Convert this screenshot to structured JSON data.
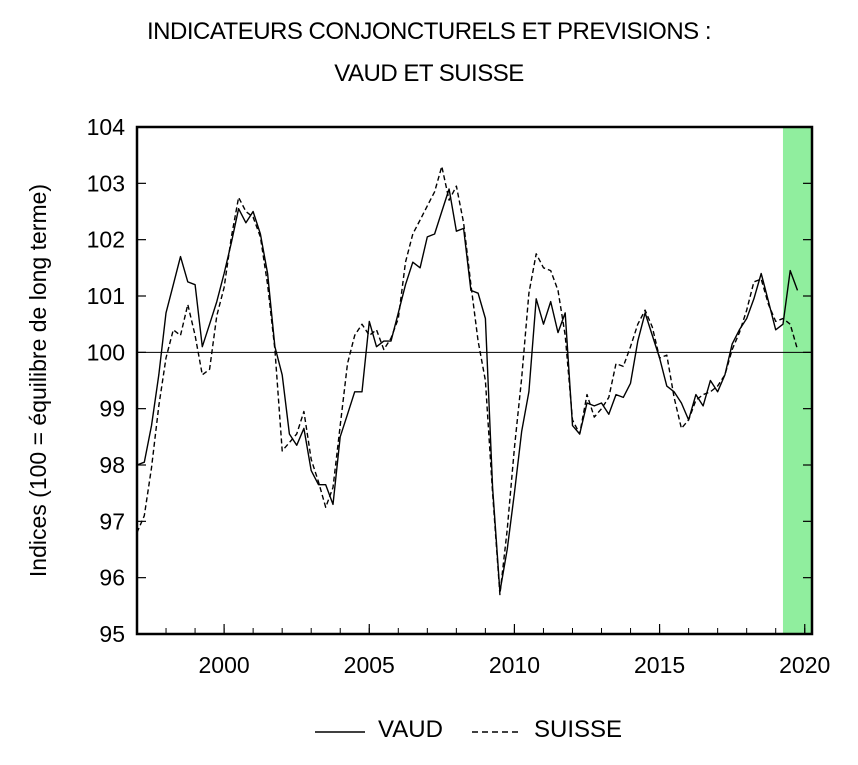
{
  "chart_data": {
    "type": "line",
    "title": "INDICATEURS CONJONCTURELS ET PREVISIONS :",
    "subtitle": "VAUD ET SUISSE",
    "ylabel": "Indices (100 = équilibre de long terme)",
    "xlabel": "",
    "xlim": [
      1997,
      2020.25
    ],
    "ylim": [
      95,
      104
    ],
    "x_ticks": [
      "2000",
      "2005",
      "2010",
      "2015",
      "2020"
    ],
    "y_ticks": [
      "95",
      "96",
      "97",
      "98",
      "99",
      "100",
      "101",
      "102",
      "103",
      "104"
    ],
    "reference_line": 100,
    "forecast_shade": {
      "from": 2019.25,
      "to": 2020.0,
      "color": "#90ee9e"
    },
    "legend_position": "bottom",
    "grid": false,
    "series": [
      {
        "name": "VAUD",
        "style": "solid",
        "color": "#000000",
        "points": [
          [
            1997.0,
            98.0
          ],
          [
            1997.25,
            98.05
          ],
          [
            1997.5,
            98.7
          ],
          [
            1997.75,
            99.6
          ],
          [
            1998.0,
            100.7
          ],
          [
            1998.25,
            101.2
          ],
          [
            1998.5,
            101.7
          ],
          [
            1998.75,
            101.25
          ],
          [
            1999.0,
            101.2
          ],
          [
            1999.25,
            100.1
          ],
          [
            1999.5,
            100.5
          ],
          [
            1999.75,
            100.9
          ],
          [
            2000.0,
            101.4
          ],
          [
            2000.25,
            101.95
          ],
          [
            2000.5,
            102.55
          ],
          [
            2000.75,
            102.3
          ],
          [
            2001.0,
            102.5
          ],
          [
            2001.25,
            102.1
          ],
          [
            2001.5,
            101.4
          ],
          [
            2001.75,
            100.1
          ],
          [
            2002.0,
            99.6
          ],
          [
            2002.25,
            98.55
          ],
          [
            2002.5,
            98.35
          ],
          [
            2002.75,
            98.65
          ],
          [
            2003.0,
            97.9
          ],
          [
            2003.25,
            97.65
          ],
          [
            2003.5,
            97.65
          ],
          [
            2003.75,
            97.3
          ],
          [
            2004.0,
            98.5
          ],
          [
            2004.25,
            98.9
          ],
          [
            2004.5,
            99.3
          ],
          [
            2004.75,
            99.3
          ],
          [
            2005.0,
            100.55
          ],
          [
            2005.25,
            100.1
          ],
          [
            2005.5,
            100.2
          ],
          [
            2005.75,
            100.2
          ],
          [
            2006.0,
            100.7
          ],
          [
            2006.25,
            101.2
          ],
          [
            2006.5,
            101.6
          ],
          [
            2006.75,
            101.5
          ],
          [
            2007.0,
            102.05
          ],
          [
            2007.25,
            102.1
          ],
          [
            2007.5,
            102.5
          ],
          [
            2007.75,
            102.9
          ],
          [
            2008.0,
            102.15
          ],
          [
            2008.25,
            102.2
          ],
          [
            2008.5,
            101.1
          ],
          [
            2008.75,
            101.05
          ],
          [
            2009.0,
            100.6
          ],
          [
            2009.25,
            97.6
          ],
          [
            2009.5,
            95.75
          ],
          [
            2009.75,
            96.5
          ],
          [
            2010.0,
            97.5
          ],
          [
            2010.25,
            98.6
          ],
          [
            2010.5,
            99.3
          ],
          [
            2010.75,
            100.95
          ],
          [
            2011.0,
            100.5
          ],
          [
            2011.25,
            100.9
          ],
          [
            2011.5,
            100.35
          ],
          [
            2011.75,
            100.7
          ],
          [
            2012.0,
            98.7
          ],
          [
            2012.25,
            98.55
          ],
          [
            2012.5,
            99.1
          ],
          [
            2012.75,
            99.05
          ],
          [
            2013.0,
            99.1
          ],
          [
            2013.25,
            98.9
          ],
          [
            2013.5,
            99.25
          ],
          [
            2013.75,
            99.2
          ],
          [
            2014.0,
            99.45
          ],
          [
            2014.25,
            100.2
          ],
          [
            2014.5,
            100.7
          ],
          [
            2014.75,
            100.3
          ],
          [
            2015.0,
            99.9
          ],
          [
            2015.25,
            99.4
          ],
          [
            2015.5,
            99.3
          ],
          [
            2015.75,
            99.1
          ],
          [
            2016.0,
            98.8
          ],
          [
            2016.25,
            99.25
          ],
          [
            2016.5,
            99.05
          ],
          [
            2016.75,
            99.5
          ],
          [
            2017.0,
            99.3
          ],
          [
            2017.25,
            99.6
          ],
          [
            2017.5,
            100.15
          ],
          [
            2017.75,
            100.4
          ],
          [
            2018.0,
            100.6
          ],
          [
            2018.25,
            100.95
          ],
          [
            2018.5,
            101.4
          ],
          [
            2018.75,
            100.9
          ],
          [
            2019.0,
            100.4
          ],
          [
            2019.25,
            100.5
          ],
          [
            2019.5,
            101.45
          ],
          [
            2019.75,
            101.1
          ]
        ]
      },
      {
        "name": "SUISSE",
        "style": "dashed",
        "color": "#000000",
        "points": [
          [
            1997.0,
            96.8
          ],
          [
            1997.25,
            97.1
          ],
          [
            1997.5,
            97.95
          ],
          [
            1997.75,
            99.05
          ],
          [
            1998.0,
            99.9
          ],
          [
            1998.25,
            100.4
          ],
          [
            1998.5,
            100.3
          ],
          [
            1998.75,
            100.85
          ],
          [
            1999.0,
            100.3
          ],
          [
            1999.25,
            99.6
          ],
          [
            1999.5,
            99.7
          ],
          [
            1999.75,
            100.65
          ],
          [
            2000.0,
            101.15
          ],
          [
            2000.25,
            102.05
          ],
          [
            2000.5,
            102.75
          ],
          [
            2000.75,
            102.5
          ],
          [
            2001.0,
            102.4
          ],
          [
            2001.25,
            102.05
          ],
          [
            2001.5,
            101.2
          ],
          [
            2001.75,
            100.05
          ],
          [
            2002.0,
            98.25
          ],
          [
            2002.25,
            98.4
          ],
          [
            2002.5,
            98.55
          ],
          [
            2002.75,
            98.95
          ],
          [
            2003.0,
            98.1
          ],
          [
            2003.25,
            97.7
          ],
          [
            2003.5,
            97.25
          ],
          [
            2003.75,
            97.6
          ],
          [
            2004.0,
            98.7
          ],
          [
            2004.25,
            99.8
          ],
          [
            2004.5,
            100.3
          ],
          [
            2004.75,
            100.5
          ],
          [
            2005.0,
            100.3
          ],
          [
            2005.25,
            100.4
          ],
          [
            2005.5,
            100.05
          ],
          [
            2005.75,
            100.25
          ],
          [
            2006.0,
            100.6
          ],
          [
            2006.25,
            101.6
          ],
          [
            2006.5,
            102.1
          ],
          [
            2006.75,
            102.35
          ],
          [
            2007.0,
            102.6
          ],
          [
            2007.25,
            102.85
          ],
          [
            2007.5,
            103.3
          ],
          [
            2007.75,
            102.7
          ],
          [
            2008.0,
            102.95
          ],
          [
            2008.25,
            102.3
          ],
          [
            2008.5,
            101.2
          ],
          [
            2008.75,
            100.2
          ],
          [
            2009.0,
            99.5
          ],
          [
            2009.25,
            97.5
          ],
          [
            2009.5,
            95.7
          ],
          [
            2009.75,
            96.85
          ],
          [
            2010.0,
            98.3
          ],
          [
            2010.25,
            99.55
          ],
          [
            2010.5,
            101.05
          ],
          [
            2010.75,
            101.75
          ],
          [
            2011.0,
            101.5
          ],
          [
            2011.25,
            101.45
          ],
          [
            2011.5,
            101.1
          ],
          [
            2011.75,
            100.3
          ],
          [
            2012.0,
            98.8
          ],
          [
            2012.25,
            98.55
          ],
          [
            2012.5,
            99.25
          ],
          [
            2012.75,
            98.85
          ],
          [
            2013.0,
            99.0
          ],
          [
            2013.25,
            99.2
          ],
          [
            2013.5,
            99.8
          ],
          [
            2013.75,
            99.75
          ],
          [
            2014.0,
            100.1
          ],
          [
            2014.25,
            100.5
          ],
          [
            2014.5,
            100.75
          ],
          [
            2014.75,
            100.45
          ],
          [
            2015.0,
            99.9
          ],
          [
            2015.25,
            99.95
          ],
          [
            2015.5,
            99.2
          ],
          [
            2015.75,
            98.65
          ],
          [
            2016.0,
            98.8
          ],
          [
            2016.25,
            99.15
          ],
          [
            2016.5,
            99.25
          ],
          [
            2016.75,
            99.3
          ],
          [
            2017.0,
            99.4
          ],
          [
            2017.25,
            99.6
          ],
          [
            2017.5,
            100.05
          ],
          [
            2017.75,
            100.35
          ],
          [
            2018.0,
            100.75
          ],
          [
            2018.25,
            101.25
          ],
          [
            2018.5,
            101.3
          ],
          [
            2018.75,
            100.85
          ],
          [
            2019.0,
            100.55
          ],
          [
            2019.25,
            100.6
          ],
          [
            2019.5,
            100.5
          ],
          [
            2019.75,
            100.05
          ]
        ]
      }
    ]
  }
}
